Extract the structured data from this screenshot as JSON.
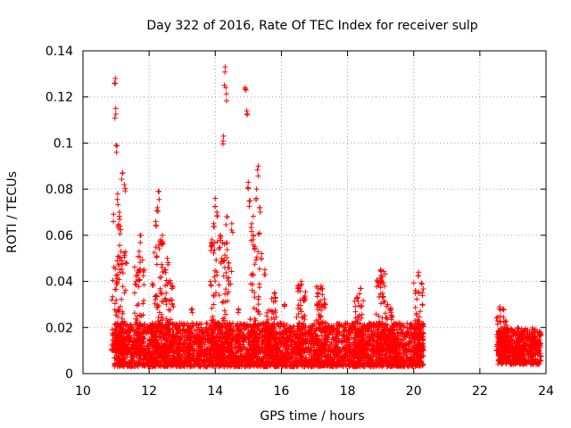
{
  "chart_data": {
    "type": "scatter",
    "title": "Day 322 of 2016, Rate Of TEC Index for receiver sulp",
    "xlabel": "GPS time / hours",
    "ylabel": "ROTI / TECUs",
    "xlim": [
      10,
      24
    ],
    "ylim": [
      0,
      0.14
    ],
    "grid": true,
    "marker": "+",
    "color": "#ff0000",
    "x_ticks": [
      "10",
      "12",
      "14",
      "16",
      "18",
      "20",
      "22",
      "24"
    ],
    "y_ticks": [
      "0",
      "0.02",
      "0.04",
      "0.06",
      "0.08",
      "0.1",
      "0.12",
      "0.14"
    ],
    "segments": [
      {
        "start": 10.95,
        "end": 20.3,
        "baseline": [
          0.003,
          0.022
        ]
      },
      {
        "start": 22.55,
        "end": 23.85,
        "baseline": [
          0.004,
          0.02
        ]
      }
    ],
    "peaks": [
      {
        "x": 10.98,
        "y": 0.128
      },
      {
        "x": 10.99,
        "y": 0.115
      },
      {
        "x": 11.0,
        "y": 0.099
      },
      {
        "x": 11.05,
        "y": 0.078
      },
      {
        "x": 11.1,
        "y": 0.07
      },
      {
        "x": 11.12,
        "y": 0.064
      },
      {
        "x": 11.15,
        "y": 0.053
      },
      {
        "x": 11.2,
        "y": 0.087
      },
      {
        "x": 11.25,
        "y": 0.082
      },
      {
        "x": 11.3,
        "y": 0.048
      },
      {
        "x": 11.6,
        "y": 0.04
      },
      {
        "x": 11.7,
        "y": 0.053
      },
      {
        "x": 11.75,
        "y": 0.06
      },
      {
        "x": 11.85,
        "y": 0.045
      },
      {
        "x": 12.1,
        "y": 0.039
      },
      {
        "x": 12.2,
        "y": 0.066
      },
      {
        "x": 12.25,
        "y": 0.072
      },
      {
        "x": 12.3,
        "y": 0.079
      },
      {
        "x": 12.35,
        "y": 0.058
      },
      {
        "x": 12.4,
        "y": 0.06
      },
      {
        "x": 12.5,
        "y": 0.045
      },
      {
        "x": 12.55,
        "y": 0.05
      },
      {
        "x": 12.7,
        "y": 0.038
      },
      {
        "x": 13.3,
        "y": 0.028
      },
      {
        "x": 13.85,
        "y": 0.04
      },
      {
        "x": 13.9,
        "y": 0.058
      },
      {
        "x": 13.95,
        "y": 0.065
      },
      {
        "x": 14.0,
        "y": 0.076
      },
      {
        "x": 14.05,
        "y": 0.07
      },
      {
        "x": 14.15,
        "y": 0.06
      },
      {
        "x": 14.2,
        "y": 0.05
      },
      {
        "x": 14.25,
        "y": 0.103
      },
      {
        "x": 14.3,
        "y": 0.133
      },
      {
        "x": 14.32,
        "y": 0.124
      },
      {
        "x": 14.35,
        "y": 0.068
      },
      {
        "x": 14.4,
        "y": 0.048
      },
      {
        "x": 14.5,
        "y": 0.065
      },
      {
        "x": 14.7,
        "y": 0.028
      },
      {
        "x": 14.9,
        "y": 0.124
      },
      {
        "x": 14.95,
        "y": 0.114
      },
      {
        "x": 15.0,
        "y": 0.083
      },
      {
        "x": 15.05,
        "y": 0.075
      },
      {
        "x": 15.1,
        "y": 0.065
      },
      {
        "x": 15.15,
        "y": 0.06
      },
      {
        "x": 15.2,
        "y": 0.055
      },
      {
        "x": 15.25,
        "y": 0.08
      },
      {
        "x": 15.3,
        "y": 0.09
      },
      {
        "x": 15.35,
        "y": 0.072
      },
      {
        "x": 15.4,
        "y": 0.052
      },
      {
        "x": 15.5,
        "y": 0.045
      },
      {
        "x": 15.8,
        "y": 0.035
      },
      {
        "x": 16.1,
        "y": 0.03
      },
      {
        "x": 16.5,
        "y": 0.038
      },
      {
        "x": 16.6,
        "y": 0.04
      },
      {
        "x": 16.7,
        "y": 0.033
      },
      {
        "x": 17.1,
        "y": 0.035
      },
      {
        "x": 17.2,
        "y": 0.038
      },
      {
        "x": 17.3,
        "y": 0.03
      },
      {
        "x": 18.3,
        "y": 0.033
      },
      {
        "x": 18.4,
        "y": 0.037
      },
      {
        "x": 18.9,
        "y": 0.04
      },
      {
        "x": 19.0,
        "y": 0.045
      },
      {
        "x": 19.05,
        "y": 0.042
      },
      {
        "x": 19.3,
        "y": 0.028
      },
      {
        "x": 20.05,
        "y": 0.036
      },
      {
        "x": 20.15,
        "y": 0.044
      },
      {
        "x": 22.6,
        "y": 0.029
      },
      {
        "x": 22.7,
        "y": 0.028
      }
    ],
    "bursts": [
      {
        "x": 11.0,
        "height": 0.06
      },
      {
        "x": 11.15,
        "height": 0.05
      },
      {
        "x": 11.7,
        "height": 0.04
      },
      {
        "x": 12.3,
        "height": 0.05
      },
      {
        "x": 12.6,
        "height": 0.035
      },
      {
        "x": 14.0,
        "height": 0.05
      },
      {
        "x": 14.35,
        "height": 0.05
      },
      {
        "x": 15.2,
        "height": 0.06
      },
      {
        "x": 15.7,
        "height": 0.025
      },
      {
        "x": 16.6,
        "height": 0.03
      },
      {
        "x": 17.2,
        "height": 0.03
      },
      {
        "x": 18.35,
        "height": 0.025
      },
      {
        "x": 19.0,
        "height": 0.035
      },
      {
        "x": 19.3,
        "height": 0.02
      },
      {
        "x": 20.15,
        "height": 0.03
      },
      {
        "x": 22.65,
        "height": 0.015
      }
    ]
  }
}
